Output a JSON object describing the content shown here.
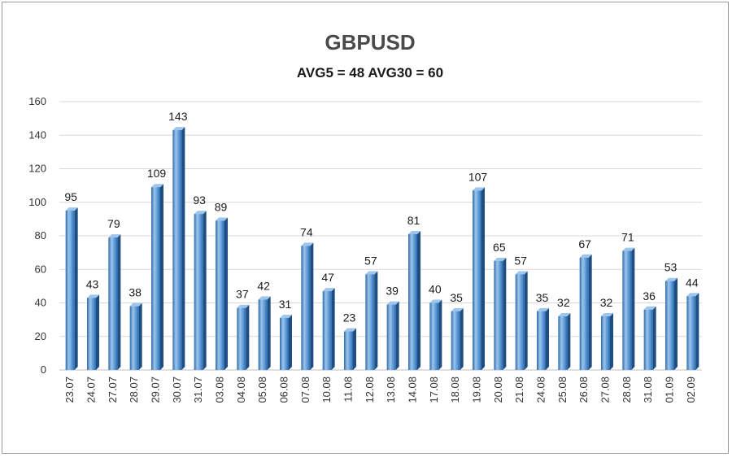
{
  "chart_data": {
    "type": "bar",
    "title": "GBPUSD",
    "subtitle": "AVG5 = 48 AVG30 = 60",
    "xlabel": "",
    "ylabel": "",
    "ylim": [
      0,
      160
    ],
    "yticks": [
      0,
      20,
      40,
      60,
      80,
      100,
      120,
      140,
      160
    ],
    "grid": true,
    "legend": "none",
    "categories": [
      "23.07",
      "24.07",
      "27.07",
      "28.07",
      "29.07",
      "30.07",
      "31.07",
      "03.08",
      "04.08",
      "05.08",
      "06.08",
      "07.08",
      "10.08",
      "11.08",
      "12.08",
      "13.08",
      "14.08",
      "17.08",
      "18.08",
      "19.08",
      "20.08",
      "21.08",
      "24.08",
      "25.08",
      "26.08",
      "27.08",
      "28.08",
      "31.08",
      "01.09",
      "02.09"
    ],
    "values": [
      95,
      43,
      79,
      38,
      109,
      143,
      93,
      89,
      37,
      42,
      31,
      74,
      47,
      23,
      57,
      39,
      81,
      40,
      35,
      107,
      65,
      57,
      35,
      32,
      67,
      32,
      71,
      36,
      53,
      44
    ],
    "colors": {
      "bar_light": "#9ec5eb",
      "bar_mid": "#4f8fd1",
      "bar_dark": "#2c6aaa",
      "bar_side": "#1f4f82"
    }
  }
}
